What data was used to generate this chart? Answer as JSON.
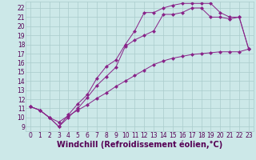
{
  "xlabel": "Windchill (Refroidissement éolien,°C)",
  "bg_color": "#cce8e8",
  "line_color": "#882288",
  "xlim": [
    -0.5,
    23.5
  ],
  "ylim": [
    8.5,
    22.7
  ],
  "xticks": [
    0,
    1,
    2,
    3,
    4,
    5,
    6,
    7,
    8,
    9,
    10,
    11,
    12,
    13,
    14,
    15,
    16,
    17,
    18,
    19,
    20,
    21,
    22,
    23
  ],
  "yticks": [
    9,
    10,
    11,
    12,
    13,
    14,
    15,
    16,
    17,
    18,
    19,
    20,
    21,
    22
  ],
  "line1_x": [
    0,
    1,
    2,
    3,
    4,
    5,
    6,
    7,
    8,
    9,
    10,
    11,
    12,
    13,
    14,
    15,
    16,
    17,
    18,
    19,
    20,
    21,
    22,
    23
  ],
  "line1_y": [
    11.2,
    10.8,
    10.0,
    9.5,
    10.2,
    10.8,
    11.4,
    12.1,
    12.7,
    13.4,
    14.0,
    14.6,
    15.2,
    15.8,
    16.2,
    16.5,
    16.7,
    16.9,
    17.0,
    17.1,
    17.2,
    17.2,
    17.2,
    17.5
  ],
  "line2_x": [
    0,
    1,
    2,
    3,
    4,
    5,
    6,
    7,
    8,
    9,
    10,
    11,
    12,
    13,
    14,
    15,
    16,
    17,
    18,
    19,
    20,
    21,
    22,
    23
  ],
  "line2_y": [
    11.2,
    10.8,
    10.0,
    9.0,
    10.0,
    11.0,
    12.2,
    13.5,
    14.5,
    15.5,
    17.8,
    18.5,
    19.0,
    19.5,
    21.3,
    21.3,
    21.5,
    22.0,
    22.0,
    21.0,
    21.0,
    20.8,
    21.0,
    17.5
  ],
  "line3_x": [
    0,
    1,
    2,
    3,
    4,
    5,
    6,
    7,
    8,
    9,
    10,
    11,
    12,
    13,
    14,
    15,
    16,
    17,
    18,
    19,
    20,
    21,
    22,
    23
  ],
  "line3_y": [
    11.2,
    10.8,
    10.0,
    9.0,
    10.3,
    11.5,
    12.5,
    14.3,
    15.6,
    16.3,
    18.0,
    19.5,
    21.5,
    21.5,
    22.0,
    22.3,
    22.5,
    22.5,
    22.5,
    22.5,
    21.5,
    21.0,
    21.0,
    17.5
  ],
  "marker_size": 2.5,
  "grid_color": "#aacccc",
  "font_color": "#550055",
  "tick_fontsize": 5.5,
  "xlabel_fontsize": 7.0
}
